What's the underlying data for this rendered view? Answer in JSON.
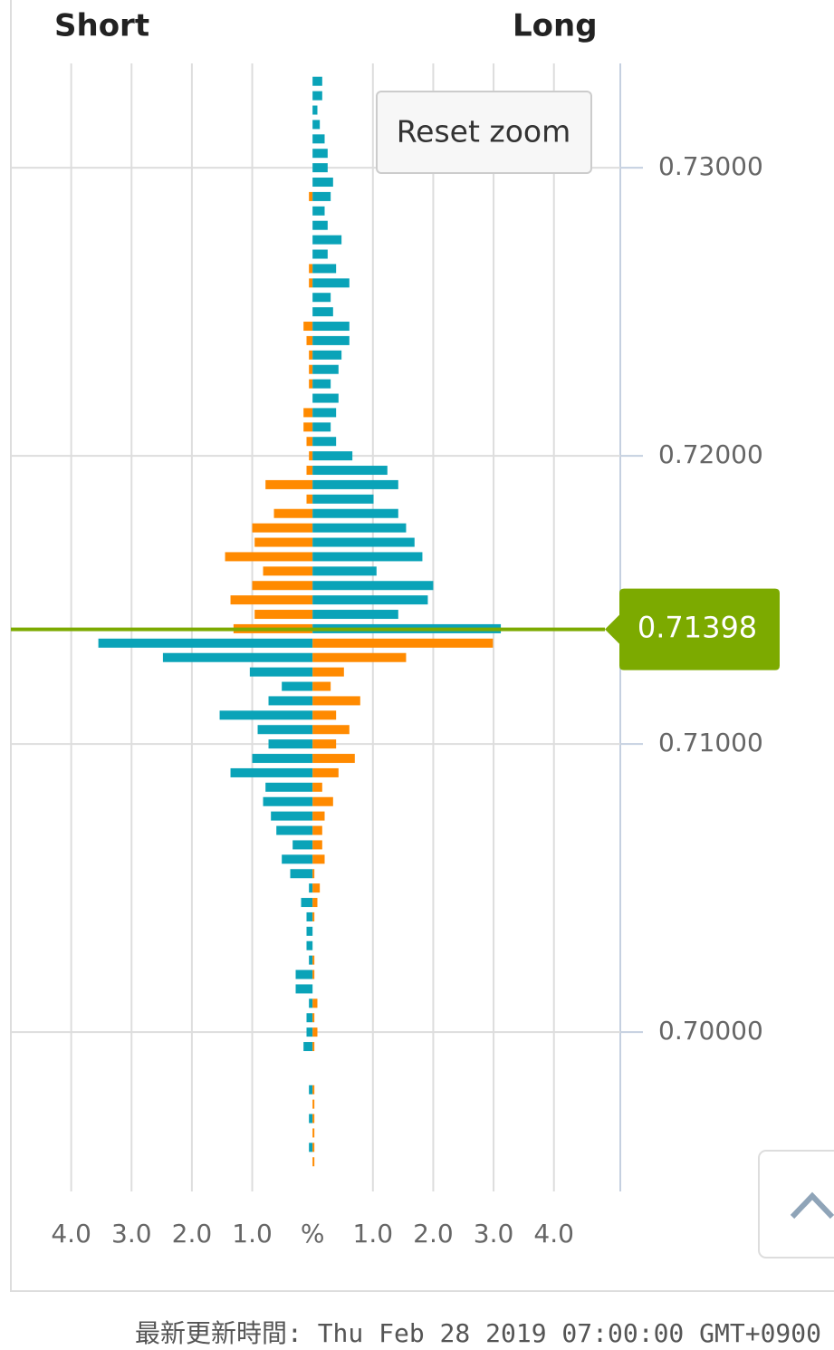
{
  "chart_data": {
    "type": "butterfly",
    "left_header": "Short",
    "right_header": "Long",
    "reset_button": "Reset zoom",
    "footer": "最新更新時間: Thu Feb 28 2019 07:00:00 GMT+0900",
    "current_price": {
      "value": 0.71398,
      "label": "0.71398"
    },
    "current_color": "#7caa00",
    "colors": {
      "above_left": "#ff8a00",
      "above_right": "#0aa3b8",
      "below_left": "#0aa3b8",
      "below_right": "#ff8a00"
    },
    "xlim": [
      -5,
      5.1
    ],
    "xticks": [
      {
        "value": -4,
        "label": "4.0"
      },
      {
        "value": -3,
        "label": "3.0"
      },
      {
        "value": -2,
        "label": "2.0"
      },
      {
        "value": -1,
        "label": "1.0"
      },
      {
        "value": 0,
        "label": "%"
      },
      {
        "value": 1,
        "label": "1.0"
      },
      {
        "value": 2,
        "label": "2.0"
      },
      {
        "value": 3,
        "label": "3.0"
      },
      {
        "value": 4,
        "label": "4.0"
      }
    ],
    "ylim": [
      0.69447,
      0.73362
    ],
    "yticks": [
      {
        "value": 0.73,
        "label": "0.73000"
      },
      {
        "value": 0.72,
        "label": "0.72000"
      },
      {
        "value": 0.71,
        "label": "0.71000"
      },
      {
        "value": 0.7,
        "label": "0.70000"
      }
    ],
    "grid": true,
    "y": [
      0.733,
      0.7325,
      0.732,
      0.7315,
      0.731,
      0.7305,
      0.73,
      0.7295,
      0.729,
      0.7285,
      0.728,
      0.7275,
      0.727,
      0.7265,
      0.726,
      0.7255,
      0.725,
      0.7245,
      0.724,
      0.7235,
      0.723,
      0.7225,
      0.722,
      0.7215,
      0.721,
      0.7205,
      0.72,
      0.7195,
      0.719,
      0.7185,
      0.718,
      0.7175,
      0.717,
      0.7165,
      0.716,
      0.7155,
      0.715,
      0.7145,
      0.714,
      0.7135,
      0.713,
      0.7125,
      0.712,
      0.7115,
      0.711,
      0.7105,
      0.71,
      0.7095,
      0.709,
      0.7085,
      0.708,
      0.7075,
      0.707,
      0.7065,
      0.706,
      0.7055,
      0.705,
      0.7045,
      0.704,
      0.7035,
      0.703,
      0.7025,
      0.702,
      0.7015,
      0.701,
      0.7005,
      0.7,
      0.6995,
      0.699,
      0.6985,
      0.698,
      0.6975,
      0.697,
      0.6965,
      0.696,
      0.6955
    ],
    "left": [
      0,
      0,
      0,
      0,
      0,
      0,
      0,
      0,
      0.06,
      0,
      0,
      0,
      0,
      0.06,
      0.06,
      0,
      0,
      0.15,
      0.1,
      0.06,
      0.06,
      0.06,
      0,
      0.15,
      0.15,
      0.1,
      0.06,
      0.1,
      0.78,
      0.1,
      0.64,
      1.0,
      0.96,
      1.45,
      0.82,
      1.0,
      1.36,
      0.96,
      1.31,
      3.55,
      2.48,
      1.04,
      0.51,
      0.73,
      1.54,
      0.91,
      0.73,
      1.0,
      1.36,
      0.78,
      0.82,
      0.69,
      0.6,
      0.33,
      0.51,
      0.37,
      0.06,
      0.19,
      0.1,
      0.1,
      0.1,
      0.06,
      0.28,
      0.28,
      0.06,
      0.1,
      0.1,
      0.15,
      0,
      0,
      0.06,
      0,
      0.06,
      0,
      0.06,
      0
    ],
    "right": [
      0.16,
      0.16,
      0.08,
      0.12,
      0.2,
      0.25,
      0.25,
      0.34,
      0.3,
      0.2,
      0.25,
      0.48,
      0.25,
      0.39,
      0.61,
      0.3,
      0.34,
      0.61,
      0.61,
      0.48,
      0.43,
      0.3,
      0.43,
      0.39,
      0.3,
      0.39,
      0.66,
      1.24,
      1.42,
      1.01,
      1.42,
      1.55,
      1.69,
      1.82,
      1.06,
      2.0,
      1.91,
      1.42,
      3.12,
      2.99,
      1.55,
      0.52,
      0.3,
      0.79,
      0.39,
      0.61,
      0.39,
      0.7,
      0.43,
      0.16,
      0.34,
      0.2,
      0.16,
      0.16,
      0.2,
      0.03,
      0.12,
      0.08,
      0.03,
      0,
      0,
      0.03,
      0.03,
      0,
      0.08,
      0.03,
      0.08,
      0.03,
      0,
      0,
      0.03,
      0.03,
      0.03,
      0.03,
      0.03,
      0.03
    ]
  }
}
